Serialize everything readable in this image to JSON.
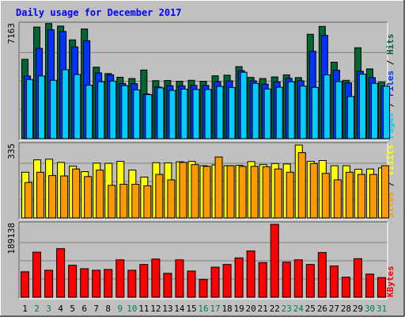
{
  "colors": {
    "background": "#c0c0c0",
    "title": "#0000ff",
    "hits": "#006633",
    "files": "#0033ff",
    "pages": "#00ccff",
    "sites": "#ff9900",
    "visits": "#ffff00",
    "kbytes": "#ff0000",
    "weekend_day": "#00804d",
    "weekday": "#000000"
  },
  "chart_data": {
    "type": "bar",
    "title": "Daily usage for December 2017",
    "categories": [
      "1",
      "2",
      "3",
      "4",
      "5",
      "6",
      "7",
      "8",
      "9",
      "10",
      "11",
      "12",
      "13",
      "14",
      "15",
      "16",
      "17",
      "18",
      "19",
      "20",
      "21",
      "22",
      "23",
      "24",
      "25",
      "26",
      "27",
      "28",
      "29",
      "30",
      "31"
    ],
    "weekend_days": [
      "2",
      "3",
      "9",
      "10",
      "16",
      "17",
      "23",
      "24",
      "30",
      "31"
    ],
    "panels": [
      {
        "id": "top",
        "ymax_label": "7163",
        "ymax": 7163,
        "legend": [
          {
            "text": "Pages",
            "color": "#00ccff"
          },
          {
            "text": " / ",
            "color": "#000000"
          },
          {
            "text": "Files",
            "color": "#0033ff"
          },
          {
            "text": " / ",
            "color": "#000000"
          },
          {
            "text": "Hits",
            "color": "#006633"
          }
        ],
        "series": [
          {
            "name": "Hits",
            "color": "#006633",
            "values": [
              4950,
              6960,
              7180,
              7020,
              6160,
              6840,
              4460,
              4060,
              3830,
              3750,
              4280,
              3620,
              3630,
              3580,
              3640,
              3580,
              3920,
              3960,
              4490,
              3820,
              3750,
              3850,
              3980,
              3810,
              6510,
              7000,
              4770,
              3640,
              5670,
              4350,
              3520
            ]
          },
          {
            "name": "Files",
            "color": "#0033ff",
            "values": [
              3910,
              5630,
              6790,
              6680,
              5720,
              6110,
              4100,
              3980,
              3440,
              3430,
              2790,
              3220,
              3300,
              3290,
              3320,
              3320,
              3550,
              3610,
              4240,
              3610,
              3400,
              3540,
              3760,
              3610,
              5450,
              6440,
              4270,
              3480,
              4200,
              3810,
              3260
            ]
          },
          {
            "name": "Pages",
            "color": "#00ccff",
            "values": [
              3690,
              3910,
              3640,
              4300,
              4000,
              3330,
              3550,
              3590,
              3310,
              3040,
              2750,
              3170,
              3010,
              3090,
              3070,
              3070,
              3260,
              3190,
              4140,
              3450,
              3100,
              3210,
              3550,
              3280,
              3200,
              3980,
              3560,
              2630,
              4020,
              3450,
              3270
            ]
          }
        ]
      },
      {
        "id": "middle",
        "ymax_label": "335",
        "ymax": 335,
        "legend": [
          {
            "text": "Sites",
            "color": "#ff9900"
          },
          {
            "text": " / ",
            "color": "#000000"
          },
          {
            "text": "Visits",
            "color": "#ffff00"
          }
        ],
        "series": [
          {
            "name": "Visits",
            "color": "#ffff00",
            "values": [
              210,
              267,
              270,
              255,
              238,
              213,
              252,
              251,
              260,
              220,
              188,
              254,
              253,
              258,
              260,
              240,
              244,
              240,
              242,
              259,
              245,
              250,
              248,
              335,
              260,
              264,
              240,
              240,
              224,
              225,
              230
            ]
          },
          {
            "name": "Sites",
            "color": "#ff9900",
            "values": [
              163,
              210,
              195,
              193,
              225,
              190,
              220,
              150,
              155,
              155,
              148,
              200,
              175,
              255,
              245,
              237,
              280,
              240,
              237,
              237,
              235,
              225,
              210,
              300,
              250,
              205,
              175,
              210,
              200,
              200,
              240
            ]
          }
        ]
      },
      {
        "id": "bottom",
        "ymax_label": "189138",
        "ymax": 189138,
        "legend": [
          {
            "text": "KBytes",
            "color": "#ff0000"
          }
        ],
        "series": [
          {
            "name": "KBytes",
            "color": "#ff0000",
            "values": [
              66000,
              117000,
              70000,
              126000,
              83000,
              74000,
              70000,
              72000,
              97000,
              70000,
              85000,
              99000,
              62000,
              97000,
              68000,
              46000,
              78000,
              85000,
              102000,
              120000,
              90000,
              189138,
              91000,
              97000,
              85000,
              116000,
              81000,
              52000,
              100000,
              60000,
              51000
            ]
          }
        ]
      }
    ]
  }
}
